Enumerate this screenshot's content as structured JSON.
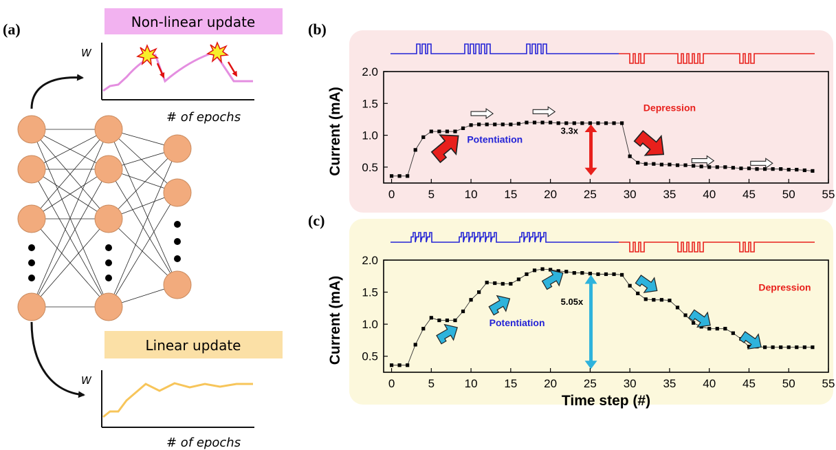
{
  "panel_a": {
    "letter": "(a)",
    "nonlinear_title": "Non-linear update",
    "linear_title": "Linear update",
    "w_label_top": "W",
    "w_label_bottom": "W",
    "epochs_label_top": "# of epochs",
    "epochs_label_bottom": "# of epochs",
    "layers": [
      5,
      5,
      4
    ],
    "colors": {
      "node": "#f2ab7d",
      "nonlinear_box": "#f2b2f0",
      "nonlinear_line": "#e48ee0",
      "linear_box": "#fbe0a6",
      "linear_line": "#f7c55a"
    }
  },
  "chart_data": [
    {
      "type": "line",
      "panel": "(b)",
      "xlabel": "",
      "ylabel": "Current (mA)",
      "xlim": [
        -1,
        55
      ],
      "ylim": [
        0.25,
        2.0
      ],
      "xticks": [
        0,
        5,
        10,
        15,
        20,
        25,
        30,
        35,
        40,
        45,
        50,
        55
      ],
      "yticks": [
        0.5,
        1.0,
        1.5,
        2.0
      ],
      "ytick_labels": [
        "0.5",
        "1.0",
        "1.5",
        "2.0"
      ],
      "background": "#fbe7e7",
      "x": [
        0,
        1,
        2,
        3,
        4,
        5,
        6,
        7,
        8,
        9,
        10,
        11,
        12,
        13,
        14,
        15,
        16,
        17,
        18,
        19,
        20,
        21,
        22,
        23,
        24,
        25,
        26,
        27,
        28,
        29,
        30,
        31,
        32,
        33,
        34,
        35,
        36,
        37,
        38,
        39,
        40,
        41,
        42,
        43,
        44,
        45,
        46,
        47,
        48,
        49,
        50,
        51,
        52,
        53
      ],
      "y": [
        0.36,
        0.36,
        0.36,
        0.77,
        0.97,
        1.06,
        1.06,
        1.06,
        1.06,
        1.11,
        1.16,
        1.17,
        1.17,
        1.17,
        1.17,
        1.17,
        1.18,
        1.2,
        1.2,
        1.2,
        1.2,
        1.19,
        1.19,
        1.19,
        1.19,
        1.19,
        1.19,
        1.19,
        1.19,
        1.19,
        0.67,
        0.57,
        0.55,
        0.55,
        0.54,
        0.54,
        0.53,
        0.53,
        0.52,
        0.51,
        0.5,
        0.5,
        0.5,
        0.49,
        0.48,
        0.48,
        0.47,
        0.47,
        0.47,
        0.47,
        0.46,
        0.46,
        0.45,
        0.44
      ],
      "annotations": {
        "potentiation": "Potentiation",
        "depression": "Depression",
        "ratio": "3.3x"
      },
      "colors": {
        "potentiation": "#2323d6",
        "depression": "#e8201c",
        "arrow": "#e8201c"
      }
    },
    {
      "type": "line",
      "panel": "(c)",
      "xlabel": "Time step (#)",
      "ylabel": "Current (mA)",
      "xlim": [
        -1,
        55
      ],
      "ylim": [
        0.25,
        2.0
      ],
      "xticks": [
        0,
        5,
        10,
        15,
        20,
        25,
        30,
        35,
        40,
        45,
        50,
        55
      ],
      "yticks": [
        0.5,
        1.0,
        1.5,
        2.0
      ],
      "ytick_labels": [
        "0.5",
        "1.0",
        "1.5",
        "2.0"
      ],
      "background": "#fcf8dc",
      "x": [
        0,
        1,
        2,
        3,
        4,
        5,
        6,
        7,
        8,
        9,
        10,
        11,
        12,
        13,
        14,
        15,
        16,
        17,
        18,
        19,
        20,
        21,
        22,
        23,
        24,
        25,
        26,
        27,
        28,
        29,
        30,
        31,
        32,
        33,
        34,
        35,
        36,
        37,
        38,
        39,
        40,
        41,
        42,
        43,
        44,
        45,
        46,
        47,
        48,
        49,
        50,
        51,
        52,
        53
      ],
      "y": [
        0.36,
        0.36,
        0.36,
        0.68,
        0.93,
        1.1,
        1.06,
        1.06,
        1.06,
        1.2,
        1.38,
        1.5,
        1.65,
        1.64,
        1.63,
        1.63,
        1.7,
        1.78,
        1.84,
        1.86,
        1.85,
        1.83,
        1.82,
        1.8,
        1.8,
        1.79,
        1.78,
        1.78,
        1.78,
        1.77,
        1.6,
        1.48,
        1.39,
        1.38,
        1.38,
        1.37,
        1.26,
        1.14,
        1.02,
        0.96,
        0.93,
        0.93,
        0.93,
        0.86,
        0.77,
        0.65,
        0.65,
        0.64,
        0.64,
        0.64,
        0.64,
        0.64,
        0.64,
        0.64
      ],
      "annotations": {
        "potentiation": "Potentiation",
        "depression": "Depression",
        "ratio": "5.05x"
      },
      "colors": {
        "potentiation": "#2323d6",
        "depression": "#e8201c",
        "arrow": "#2eb3dc"
      }
    }
  ]
}
